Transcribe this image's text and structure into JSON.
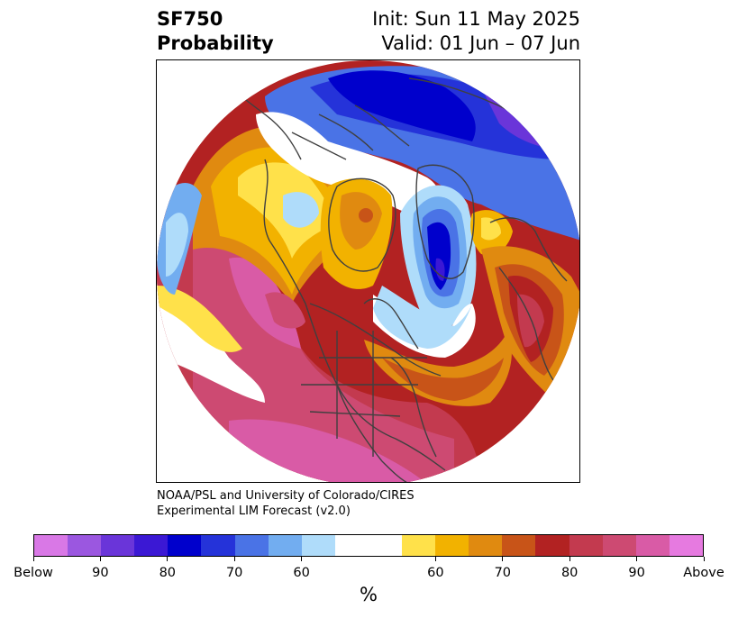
{
  "header": {
    "variable": "SF750",
    "product": "Probability",
    "init": "Init: Sun 11 May 2025",
    "valid": "Valid: 01 Jun – 07 Jun"
  },
  "credit": {
    "line1": "NOAA/PSL and University of Colorado/CIRES",
    "line2": "Experimental LIM Forecast (v2.0)"
  },
  "colorbar": {
    "colors": [
      "#d978e6",
      "#9b57e0",
      "#6a35d9",
      "#3b18d4",
      "#0000cc",
      "#2533d9",
      "#4a73e6",
      "#72adf0",
      "#afdcfa",
      "#ffffff",
      "#ffffff",
      "#ffe14a",
      "#f2b200",
      "#e08a10",
      "#c85418",
      "#b22222",
      "#c33a4f",
      "#cd4a72",
      "#d95ba6",
      "#e67ae0"
    ],
    "labels": [
      "Below",
      "90",
      "80",
      "70",
      "60",
      "60",
      "70",
      "80",
      "90",
      "Above"
    ],
    "unit": "%"
  },
  "map": {
    "projection": "north-polar-stereographic"
  }
}
